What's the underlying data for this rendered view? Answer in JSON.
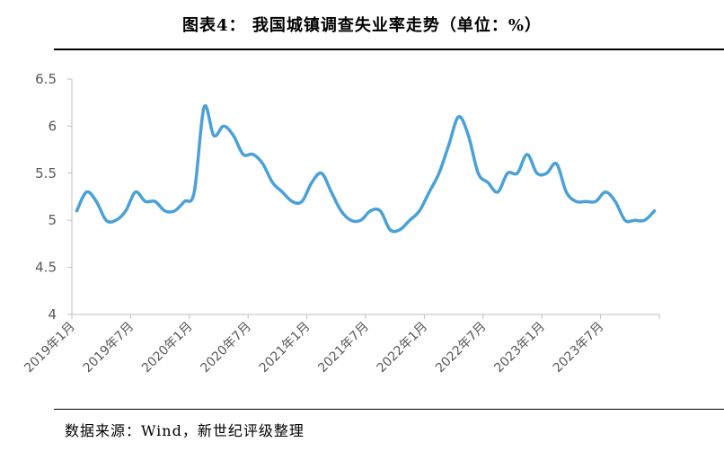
{
  "page": {
    "title": "图表4： 我国城镇调查失业率走势（单位：%）",
    "source": "数据来源：Wind，新世纪评级整理"
  },
  "chart_data": {
    "type": "line",
    "title": "图表4： 我国城镇调查失业率走势（单位：%）",
    "xlabel": "",
    "ylabel": "",
    "ylim": [
      4,
      6.5
    ],
    "yticks": [
      4,
      4.5,
      5,
      5.5,
      6,
      6.5
    ],
    "ytick_labels": [
      "4",
      "4.5",
      "5",
      "5.5",
      "6",
      "6.5"
    ],
    "xtick_labels": [
      "2019年1月",
      "2019年7月",
      "2020年1月",
      "2020年7月",
      "2021年1月",
      "2021年7月",
      "2022年1月",
      "2022年7月",
      "2023年1月",
      "2023年7月"
    ],
    "grid": false,
    "legend": "none",
    "line_color": "#4aa1d8",
    "axis_color": "#bfbfbf",
    "x": [
      "2019-01",
      "2019-02",
      "2019-03",
      "2019-04",
      "2019-05",
      "2019-06",
      "2019-07",
      "2019-08",
      "2019-09",
      "2019-10",
      "2019-11",
      "2019-12",
      "2020-01",
      "2020-02",
      "2020-03",
      "2020-04",
      "2020-05",
      "2020-06",
      "2020-07",
      "2020-08",
      "2020-09",
      "2020-10",
      "2020-11",
      "2020-12",
      "2021-01",
      "2021-02",
      "2021-03",
      "2021-04",
      "2021-05",
      "2021-06",
      "2021-07",
      "2021-08",
      "2021-09",
      "2021-10",
      "2021-11",
      "2021-12",
      "2022-01",
      "2022-02",
      "2022-03",
      "2022-04",
      "2022-05",
      "2022-06",
      "2022-07",
      "2022-08",
      "2022-09",
      "2022-10",
      "2022-11",
      "2022-12",
      "2023-01",
      "2023-02",
      "2023-03",
      "2023-04",
      "2023-05",
      "2023-06",
      "2023-07",
      "2023-08",
      "2023-09",
      "2023-10",
      "2023-11",
      "2023-12"
    ],
    "series": [
      {
        "values": [
          5.1,
          5.3,
          5.2,
          5.0,
          5.0,
          5.1,
          5.3,
          5.2,
          5.2,
          5.1,
          5.1,
          5.2,
          5.3,
          6.2,
          5.9,
          6.0,
          5.9,
          5.7,
          5.7,
          5.6,
          5.4,
          5.3,
          5.2,
          5.2,
          5.4,
          5.5,
          5.3,
          5.1,
          5.0,
          5.0,
          5.1,
          5.1,
          4.9,
          4.9,
          5.0,
          5.1,
          5.3,
          5.5,
          5.8,
          6.1,
          5.9,
          5.5,
          5.4,
          5.3,
          5.5,
          5.5,
          5.7,
          5.5,
          5.5,
          5.6,
          5.3,
          5.2,
          5.2,
          5.2,
          5.3,
          5.2,
          5.0,
          5.0,
          5.0,
          5.1
        ]
      }
    ]
  }
}
